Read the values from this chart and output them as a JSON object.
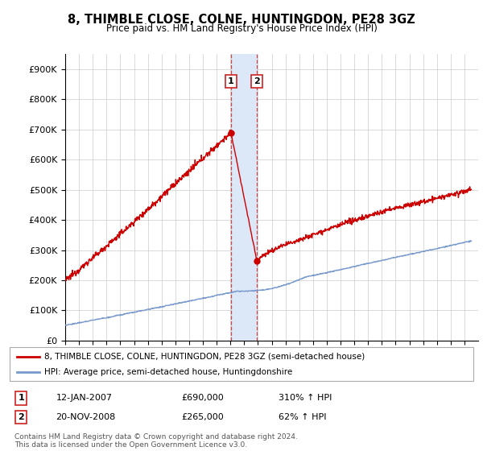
{
  "title": "8, THIMBLE CLOSE, COLNE, HUNTINGDON, PE28 3GZ",
  "subtitle": "Price paid vs. HM Land Registry's House Price Index (HPI)",
  "ylim": [
    0,
    950000
  ],
  "yticks": [
    0,
    100000,
    200000,
    300000,
    400000,
    500000,
    600000,
    700000,
    800000,
    900000
  ],
  "ytick_labels": [
    "£0",
    "£100K",
    "£200K",
    "£300K",
    "£400K",
    "£500K",
    "£600K",
    "£700K",
    "£800K",
    "£900K"
  ],
  "legend_line1": "8, THIMBLE CLOSE, COLNE, HUNTINGDON, PE28 3GZ (semi-detached house)",
  "legend_line2": "HPI: Average price, semi-detached house, Huntingdonshire",
  "annotation1": {
    "num": "1",
    "date": "12-JAN-2007",
    "price": "£690,000",
    "hpi": "310% ↑ HPI"
  },
  "annotation2": {
    "num": "2",
    "date": "20-NOV-2008",
    "price": "£265,000",
    "hpi": "62% ↑ HPI"
  },
  "footnote": "Contains HM Land Registry data © Crown copyright and database right 2024.\nThis data is licensed under the Open Government Licence v3.0.",
  "line_color_red": "#cc0000",
  "line_color_blue": "#7799cc",
  "highlight_color": "#dce8f8",
  "vline_color": "#cc4444",
  "marker1_x": 2007.04,
  "marker1_y": 690000,
  "marker2_x": 2008.92,
  "marker2_y": 265000,
  "xmin": 1995,
  "xmax": 2025
}
